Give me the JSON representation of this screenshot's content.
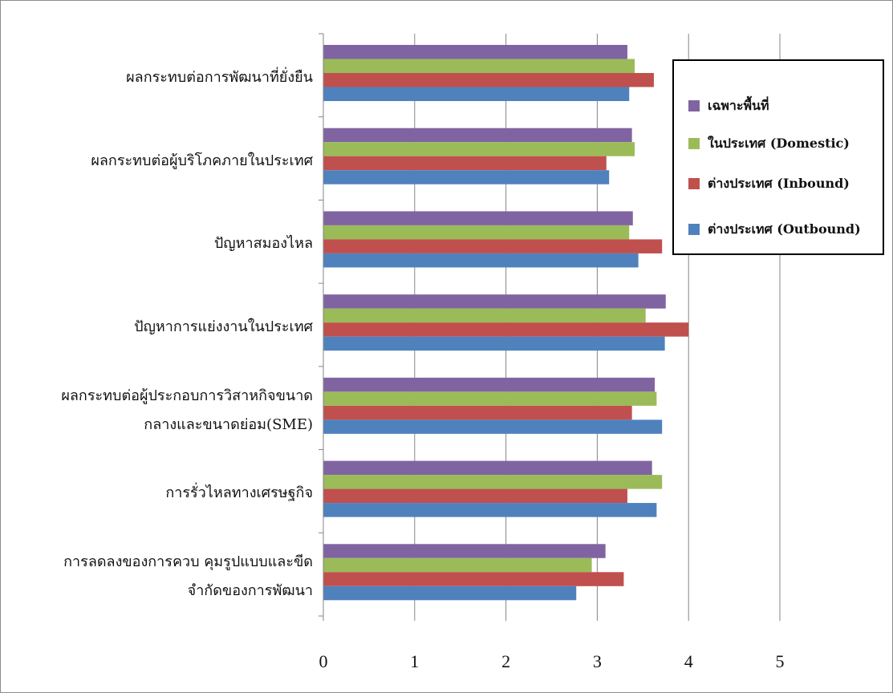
{
  "chart_data": {
    "type": "bar",
    "orientation": "horizontal",
    "categories": [
      [
        "ผลกระทบต่อการพัฒนาที่ยั่งยืน"
      ],
      [
        "ผลกระทบต่อผู้บริโภคภายในประเทศ"
      ],
      [
        "ปัญหาสมองไหล"
      ],
      [
        "ปัญหาการแย่งงานในประเทศ"
      ],
      [
        "ผลกระทบต่อผู้ประกอบการวิสาหกิจขนาด",
        "กลางและขนาดย่อม(SME)"
      ],
      [
        "การรั่วไหลทางเศรษฐกิจ"
      ],
      [
        "การลดลงของการควบ คุมรูปแบบและขีด",
        "จำกัดของการพัฒนา"
      ]
    ],
    "series": [
      {
        "name": "เฉพาะพื้นที่",
        "color": "#8064a2",
        "values": [
          3.33,
          3.38,
          3.39,
          3.75,
          3.63,
          3.6,
          3.09
        ]
      },
      {
        "name": "ในประเทศ (Domestic)",
        "color": "#9bbb59",
        "values": [
          3.41,
          3.41,
          3.35,
          3.53,
          3.65,
          3.71,
          2.94
        ]
      },
      {
        "name": "ต่างประเทศ (Inbound)",
        "color": "#c0504d",
        "values": [
          3.62,
          3.1,
          3.71,
          4.0,
          3.38,
          3.33,
          3.29
        ]
      },
      {
        "name": "ต่างประเทศ (Outbound)",
        "color": "#4f81bd",
        "values": [
          3.35,
          3.13,
          3.45,
          3.74,
          3.71,
          3.65,
          2.77
        ]
      }
    ],
    "xlim": [
      0,
      5
    ],
    "ticks": [
      "0",
      "1",
      "2",
      "3",
      "4",
      "5"
    ],
    "legend_position": "top-right",
    "grid": true
  }
}
